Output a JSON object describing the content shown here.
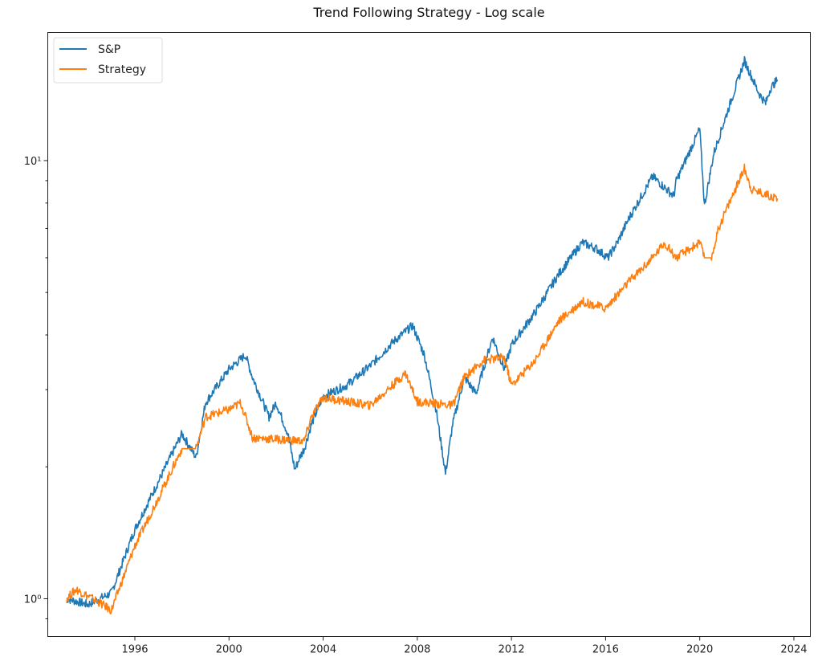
{
  "chart_data": {
    "type": "line",
    "title": "Trend Following Strategy - Log scale",
    "xlabel": "",
    "ylabel": "",
    "yscale": "log",
    "xlim": [
      1992.3,
      2024.7
    ],
    "ylim": [
      0.82,
      19.6
    ],
    "grid": false,
    "legend_position": "top-left",
    "x_ticks": [
      "1996",
      "2000",
      "2004",
      "2008",
      "2012",
      "2016",
      "2020",
      "2024"
    ],
    "y_ticks": [
      {
        "value": 1,
        "label": "10⁰"
      },
      {
        "value": 10,
        "label": "10¹"
      }
    ],
    "series": [
      {
        "name": "S&P",
        "color": "#1f77b4",
        "x": [
          1993.1,
          1994.0,
          1995.0,
          1996.0,
          1997.0,
          1998.0,
          1998.6,
          1999.0,
          2000.0,
          2000.7,
          2001.0,
          2001.7,
          2002.0,
          2002.5,
          2002.8,
          2003.0,
          2003.2,
          2003.5,
          2004.0,
          2005.0,
          2006.0,
          2007.0,
          2007.8,
          2008.3,
          2008.8,
          2009.2,
          2009.5,
          2010.0,
          2010.5,
          2011.2,
          2011.7,
          2012.0,
          2013.0,
          2014.0,
          2015.0,
          2015.6,
          2016.1,
          2016.5,
          2017.0,
          2018.0,
          2018.9,
          2019.0,
          2020.0,
          2020.2,
          2020.6,
          2021.0,
          2021.9,
          2022.5,
          2022.8,
          2023.0,
          2023.3
        ],
        "y": [
          1.0,
          0.97,
          1.03,
          1.44,
          1.85,
          2.38,
          2.1,
          2.8,
          3.34,
          3.6,
          3.2,
          2.6,
          2.8,
          2.38,
          1.97,
          2.1,
          2.2,
          2.5,
          2.9,
          3.07,
          3.4,
          3.87,
          4.2,
          3.6,
          2.7,
          1.93,
          2.5,
          3.2,
          2.94,
          3.95,
          3.34,
          3.79,
          4.5,
          5.5,
          6.5,
          6.3,
          6.0,
          6.5,
          7.4,
          9.2,
          8.3,
          8.98,
          11.8,
          7.9,
          10.4,
          12.1,
          16.9,
          14.3,
          13.5,
          14.6,
          15.3
        ]
      },
      {
        "name": "Strategy",
        "color": "#ff7f0e",
        "x": [
          1993.1,
          1993.5,
          1994.5,
          1995.0,
          1996.0,
          1997.0,
          1998.0,
          1998.6,
          1999.0,
          2000.0,
          2000.5,
          2001.0,
          2003.2,
          2003.5,
          2004.0,
          2006.0,
          2007.5,
          2008.0,
          2009.5,
          2010.0,
          2010.8,
          2011.7,
          2012.0,
          2013.0,
          2014.0,
          2015.0,
          2016.0,
          2017.0,
          2018.0,
          2018.5,
          2019.0,
          2020.0,
          2020.2,
          2020.5,
          2020.8,
          2021.0,
          2021.9,
          2022.2,
          2023.3
        ],
        "y": [
          1.0,
          1.05,
          0.98,
          0.94,
          1.32,
          1.7,
          2.2,
          2.2,
          2.6,
          2.7,
          2.8,
          2.33,
          2.29,
          2.6,
          2.88,
          2.76,
          3.27,
          2.82,
          2.76,
          3.2,
          3.5,
          3.55,
          3.07,
          3.5,
          4.3,
          4.77,
          4.6,
          5.3,
          6.0,
          6.5,
          6.0,
          6.5,
          6.0,
          6.0,
          7.0,
          7.45,
          9.6,
          8.6,
          8.2
        ]
      }
    ]
  }
}
